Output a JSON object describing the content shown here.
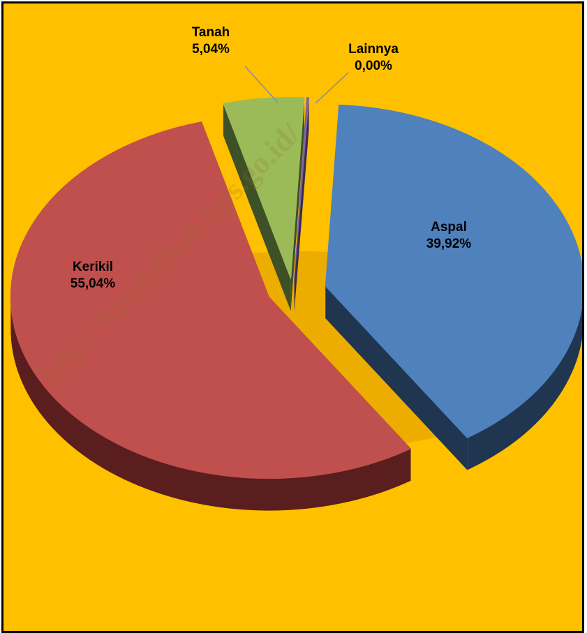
{
  "chart_data": {
    "type": "pie",
    "style": "3d-exploded",
    "slices": [
      {
        "label": "Aspal",
        "value": 39.92,
        "display": "39,92%",
        "color": "#4F81BD",
        "side_color": "#1F3550"
      },
      {
        "label": "Kerikil",
        "value": 55.04,
        "display": "55,04%",
        "color": "#C0504D",
        "side_color": "#5A1E1E"
      },
      {
        "label": "Tanah",
        "value": 5.04,
        "display": "5,04%",
        "color": "#9BBB59",
        "side_color": "#3E5028"
      },
      {
        "label": "Lainnya",
        "value": 0.0,
        "display": "0,00%",
        "color": "#8064A2",
        "side_color": "#3A2C4E"
      }
    ],
    "background": "#FFC000",
    "legend": "none",
    "watermark": "http://kendalkab.bps.go.id/"
  }
}
